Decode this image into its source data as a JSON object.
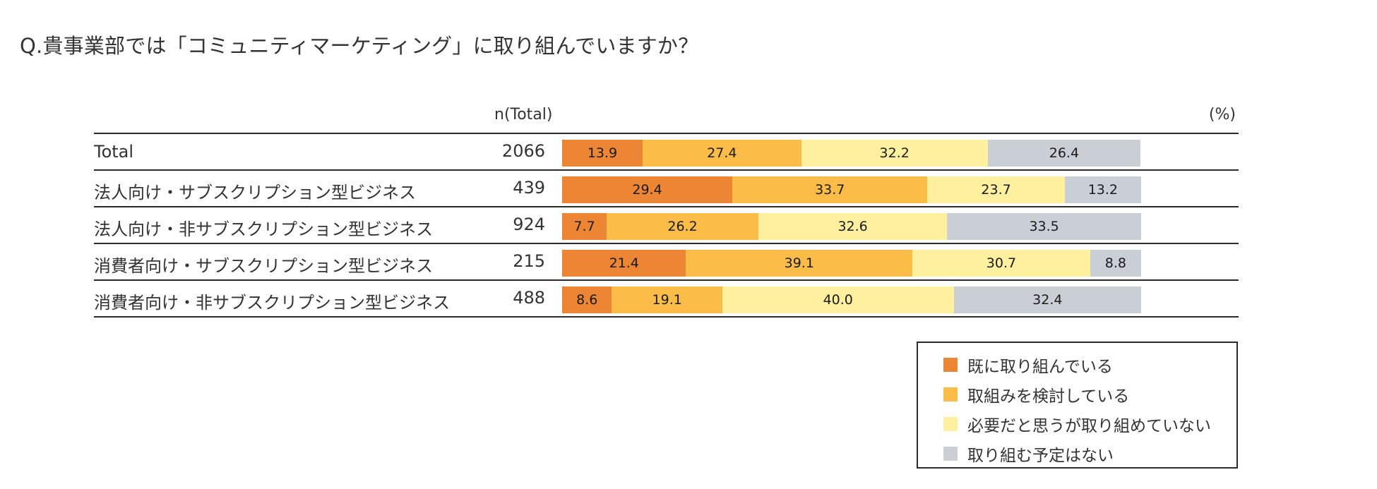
{
  "question": "Q.貴事業部では「コミュニティマーケティング」に取り組んでいますか？",
  "chart_data": {
    "type": "bar",
    "orientation": "horizontal",
    "stacked": true,
    "title": "Q.貴事業部では「コミュニティマーケティング」に取り組んでいますか？",
    "n_header": "n(Total)",
    "unit": "(%)",
    "xlim": [
      0,
      100
    ],
    "categories": [
      "Total",
      "法人向け・サブスクリプション型ビジネス",
      "法人向け・非サブスクリプション型ビジネス",
      "消費者向け・サブスクリプション型ビジネス",
      "消費者向け・非サブスクリプション型ビジネス"
    ],
    "n": [
      2066,
      439,
      924,
      215,
      488
    ],
    "series": [
      {
        "name": "既に取り組んでいる",
        "color": "#ed8634",
        "values": [
          "13.9",
          "29.4",
          "7.7",
          "21.4",
          "8.6"
        ]
      },
      {
        "name": "取組みを検討している",
        "color": "#fbbd47",
        "values": [
          "27.4",
          "33.7",
          "26.2",
          "39.1",
          "19.1"
        ]
      },
      {
        "name": "必要だと思うが取り組めていない",
        "color": "#fef09e",
        "values": [
          "32.2",
          "23.7",
          "32.6",
          "30.7",
          "40.0"
        ]
      },
      {
        "name": "取り組む予定はない",
        "color": "#cacfd6",
        "values": [
          "26.4",
          "13.2",
          "33.5",
          "8.8",
          "32.4"
        ]
      }
    ],
    "legend_position": "bottom-right"
  }
}
